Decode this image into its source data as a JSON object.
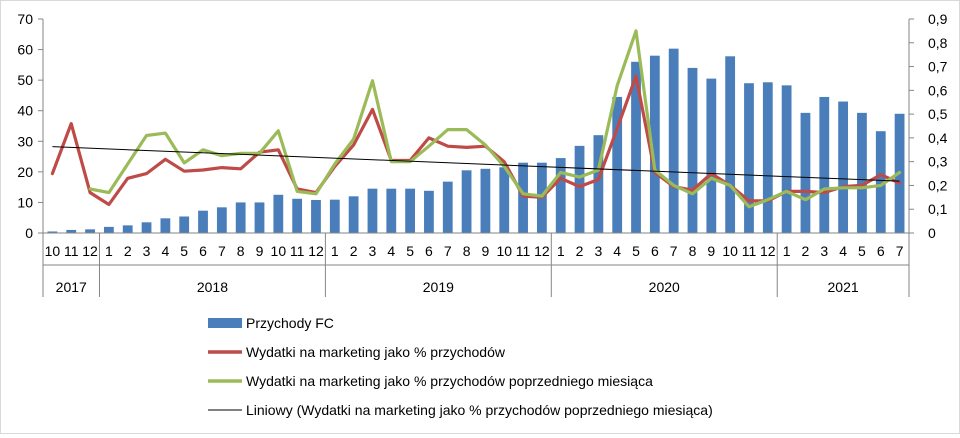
{
  "chart_data": {
    "type": "bar",
    "title": "",
    "xlabel": "",
    "ylabel": "",
    "ylim": [
      0,
      70
    ],
    "y2lim": [
      0,
      0.9
    ],
    "y_ticks": [
      "0",
      "10",
      "20",
      "30",
      "40",
      "50",
      "60",
      "70"
    ],
    "y2_ticks": [
      "0",
      "0,1",
      "0,2",
      "0,3",
      "0,4",
      "0,5",
      "0,6",
      "0,7",
      "0,8",
      "0,9"
    ],
    "months": [
      "10",
      "11",
      "12",
      "1",
      "2",
      "3",
      "4",
      "5",
      "6",
      "7",
      "8",
      "9",
      "10",
      "11",
      "12",
      "1",
      "2",
      "3",
      "4",
      "5",
      "6",
      "7",
      "8",
      "9",
      "10",
      "11",
      "12",
      "1",
      "2",
      "3",
      "4",
      "5",
      "6",
      "7",
      "8",
      "9",
      "10",
      "11",
      "12",
      "1",
      "2",
      "3",
      "4",
      "5",
      "6",
      "7"
    ],
    "years": [
      {
        "label": "2017",
        "start": 0,
        "count": 3
      },
      {
        "label": "2018",
        "start": 3,
        "count": 12
      },
      {
        "label": "2019",
        "start": 15,
        "count": 12
      },
      {
        "label": "2020",
        "start": 27,
        "count": 12
      },
      {
        "label": "2021",
        "start": 39,
        "count": 7
      }
    ],
    "legend_position": "bottom",
    "series": [
      {
        "name": "Przychody FC",
        "type": "bar",
        "axis": "left",
        "color": "#4a7ebb",
        "values": [
          0.5,
          1,
          1.2,
          2,
          2.5,
          3.5,
          4.8,
          5.4,
          7.3,
          8.4,
          10,
          10,
          12.5,
          11.2,
          10.8,
          10.9,
          12,
          14.5,
          14.5,
          14.5,
          13.8,
          16.8,
          20.5,
          21,
          21.5,
          23,
          23,
          24.5,
          28.5,
          32,
          44.5,
          56,
          58,
          60.3,
          54,
          50.5,
          57.8,
          49,
          49.3,
          48.3,
          39.3,
          44.5,
          43,
          39.3,
          33.3,
          39
        ]
      },
      {
        "name": "Wydatki na marketing jako % przychodów",
        "type": "line",
        "axis": "right",
        "color": "#be4b48",
        "values": [
          0.25,
          0.46,
          0.17,
          0.12,
          0.23,
          0.25,
          0.31,
          0.26,
          0.265,
          0.275,
          0.27,
          0.34,
          0.35,
          0.185,
          0.17,
          0.28,
          0.37,
          0.52,
          0.305,
          0.305,
          0.4,
          0.365,
          0.36,
          0.365,
          0.3,
          0.155,
          0.15,
          0.23,
          0.195,
          0.225,
          0.44,
          0.66,
          0.255,
          0.195,
          0.18,
          0.25,
          0.2,
          0.135,
          0.135,
          0.175,
          0.175,
          0.17,
          0.195,
          0.2,
          0.245,
          0.21
        ]
      },
      {
        "name": "Wydatki na marketing jako % przychodów poprzedniego miesiąca",
        "type": "line",
        "axis": "right",
        "color": "#9bbb59",
        "values": [
          null,
          null,
          0.185,
          0.17,
          0.29,
          0.41,
          0.42,
          0.295,
          0.35,
          0.325,
          0.335,
          0.335,
          0.43,
          0.175,
          0.165,
          0.29,
          0.395,
          0.64,
          0.3,
          0.3,
          0.365,
          0.435,
          0.435,
          0.37,
          0.28,
          0.165,
          0.155,
          0.255,
          0.235,
          0.265,
          0.62,
          0.85,
          0.265,
          0.2,
          0.165,
          0.23,
          0.2,
          0.11,
          0.14,
          0.175,
          0.14,
          0.185,
          0.19,
          0.19,
          0.2,
          0.255
        ]
      },
      {
        "name": "Liniowy (Wydatki na marketing jako % przychodów poprzedniego miesiąca)",
        "type": "trendline",
        "axis": "right",
        "color": "#000000",
        "start": 0.363,
        "end": 0.218
      }
    ]
  }
}
